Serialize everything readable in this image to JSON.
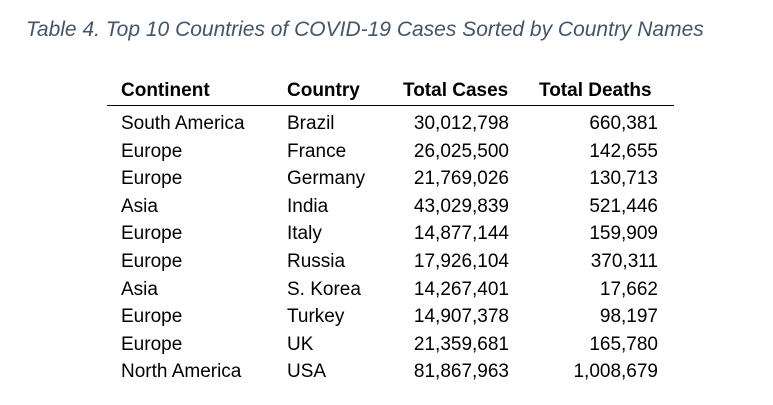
{
  "caption": "Table 4. Top 10 Countries of COVID-19 Cases Sorted by Country Names",
  "table": {
    "headers": {
      "continent": "Continent",
      "country": "Country",
      "total_cases": "Total Cases",
      "total_deaths": "Total Deaths"
    },
    "rows": [
      {
        "continent": "South America",
        "country": "Brazil",
        "total_cases": "30,012,798",
        "total_deaths": "660,381"
      },
      {
        "continent": "Europe",
        "country": "France",
        "total_cases": "26,025,500",
        "total_deaths": "142,655"
      },
      {
        "continent": "Europe",
        "country": "Germany",
        "total_cases": "21,769,026",
        "total_deaths": "130,713"
      },
      {
        "continent": "Asia",
        "country": "India",
        "total_cases": "43,029,839",
        "total_deaths": "521,446"
      },
      {
        "continent": "Europe",
        "country": "Italy",
        "total_cases": "14,877,144",
        "total_deaths": "159,909"
      },
      {
        "continent": "Europe",
        "country": "Russia",
        "total_cases": "17,926,104",
        "total_deaths": "370,311"
      },
      {
        "continent": "Asia",
        "country": "S. Korea",
        "total_cases": "14,267,401",
        "total_deaths": "17,662"
      },
      {
        "continent": "Europe",
        "country": "Turkey",
        "total_cases": "14,907,378",
        "total_deaths": "98,197"
      },
      {
        "continent": "Europe",
        "country": "UK",
        "total_cases": "21,359,681",
        "total_deaths": "165,780"
      },
      {
        "continent": "North America",
        "country": "USA",
        "total_cases": "81,867,963",
        "total_deaths": "1,008,679"
      }
    ]
  },
  "colors": {
    "caption": "#44546a",
    "text": "#000000",
    "rule": "#000000"
  }
}
